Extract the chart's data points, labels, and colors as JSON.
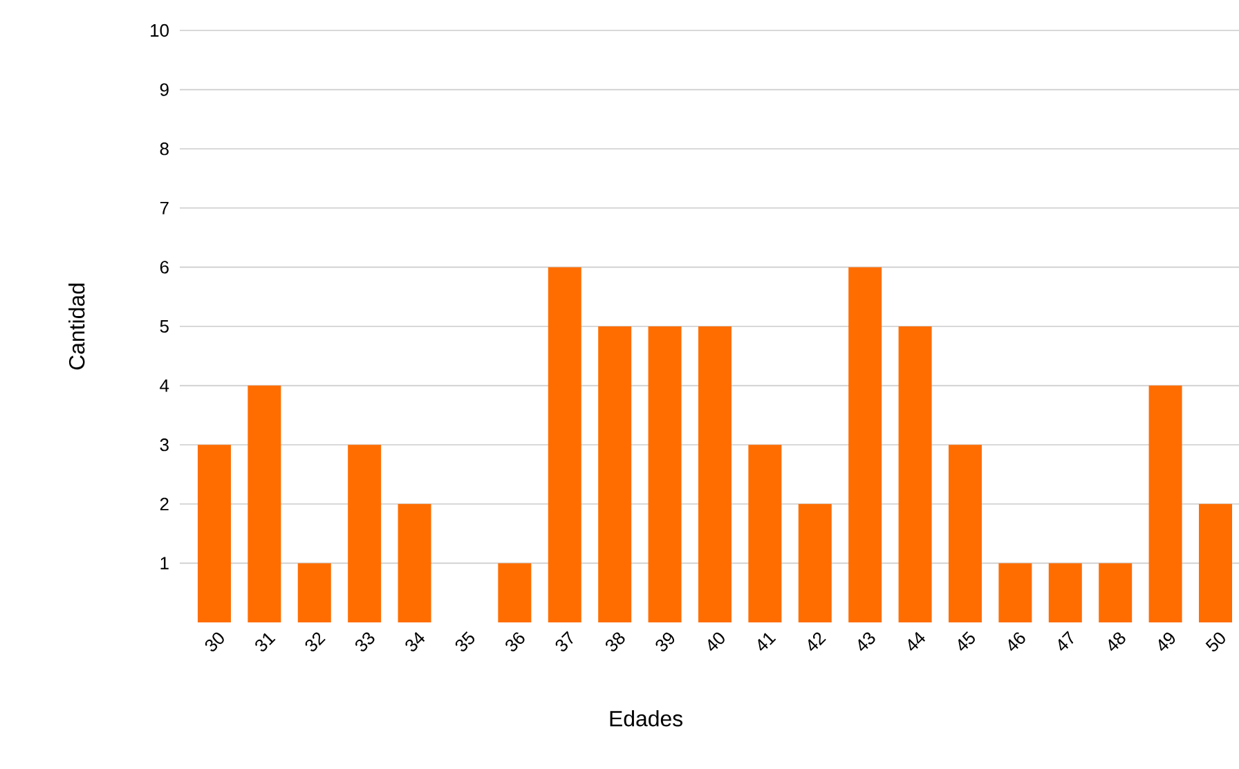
{
  "chart_data": {
    "type": "bar",
    "xlabel": "Edades",
    "ylabel": "Cantidad",
    "categories": [
      "30",
      "31",
      "32",
      "33",
      "34",
      "35",
      "36",
      "37",
      "38",
      "39",
      "40",
      "41",
      "42",
      "43",
      "44",
      "45",
      "46",
      "47",
      "48",
      "49",
      "50"
    ],
    "values": [
      3,
      4,
      1,
      3,
      2,
      0,
      1,
      6,
      5,
      5,
      5,
      3,
      2,
      6,
      5,
      3,
      1,
      1,
      1,
      4,
      2
    ],
    "color": "#ff6d01",
    "ylim": [
      0,
      10
    ],
    "yticks": [
      1,
      2,
      3,
      4,
      5,
      6,
      7,
      8,
      9,
      10
    ],
    "grid": "y"
  }
}
